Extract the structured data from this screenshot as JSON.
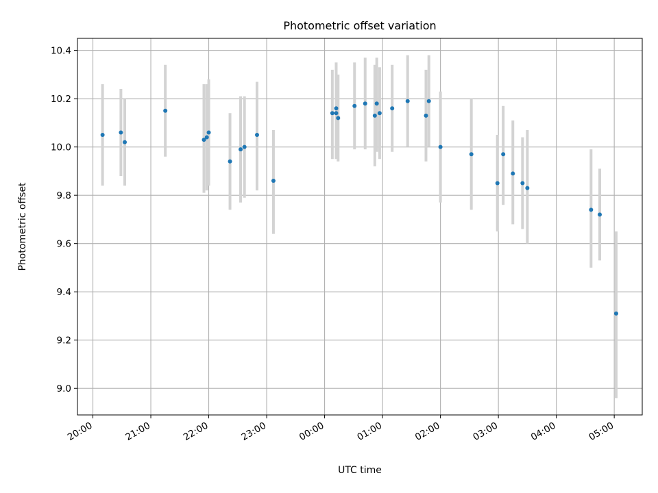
{
  "chart_data": {
    "type": "scatter",
    "title": "Photometric offset variation",
    "xlabel": "UTC time",
    "ylabel": "Photometric offset",
    "grid": true,
    "x_tick_labels": [
      "20:00",
      "21:00",
      "22:00",
      "23:00",
      "00:00",
      "01:00",
      "02:00",
      "03:00",
      "04:00",
      "05:00"
    ],
    "y_tick_labels": [
      "9.0",
      "9.2",
      "9.4",
      "9.6",
      "9.8",
      "10.0",
      "10.2",
      "10.4"
    ],
    "y_ticks": [
      9.0,
      9.2,
      9.4,
      9.6,
      9.8,
      10.0,
      10.2,
      10.4
    ],
    "xlim": [
      "19:44",
      "05:29"
    ],
    "ylim": [
      8.89,
      10.45
    ],
    "colors": {
      "marker": "#1f77b4",
      "errorbar": "#d3d3d3",
      "grid": "#b0b0b0"
    },
    "points": [
      {
        "t": "20:10",
        "y": 10.05,
        "lo": 9.84,
        "hi": 10.26
      },
      {
        "t": "20:29",
        "y": 10.06,
        "lo": 9.88,
        "hi": 10.24
      },
      {
        "t": "20:33",
        "y": 10.02,
        "lo": 9.84,
        "hi": 10.2
      },
      {
        "t": "21:15",
        "y": 10.15,
        "lo": 9.96,
        "hi": 10.34
      },
      {
        "t": "21:55",
        "y": 10.03,
        "lo": 9.81,
        "hi": 10.26
      },
      {
        "t": "21:58",
        "y": 10.04,
        "lo": 9.82,
        "hi": 10.26
      },
      {
        "t": "22:00",
        "y": 10.06,
        "lo": 9.84,
        "hi": 10.28
      },
      {
        "t": "22:22",
        "y": 9.94,
        "lo": 9.74,
        "hi": 10.14
      },
      {
        "t": "22:33",
        "y": 9.99,
        "lo": 9.77,
        "hi": 10.21
      },
      {
        "t": "22:37",
        "y": 10.0,
        "lo": 9.79,
        "hi": 10.21
      },
      {
        "t": "22:50",
        "y": 10.05,
        "lo": 9.82,
        "hi": 10.27
      },
      {
        "t": "23:07",
        "y": 9.86,
        "lo": 9.64,
        "hi": 10.07
      },
      {
        "t": "00:08",
        "y": 10.14,
        "lo": 9.95,
        "hi": 10.32
      },
      {
        "t": "00:12",
        "y": 10.16,
        "lo": 9.95,
        "hi": 10.35
      },
      {
        "t": "00:12",
        "y": 10.14,
        "lo": 9.97,
        "hi": 10.31
      },
      {
        "t": "00:14",
        "y": 10.12,
        "lo": 9.94,
        "hi": 10.3
      },
      {
        "t": "00:31",
        "y": 10.17,
        "lo": 9.99,
        "hi": 10.35
      },
      {
        "t": "00:42",
        "y": 10.18,
        "lo": 9.99,
        "hi": 10.37
      },
      {
        "t": "00:52",
        "y": 10.13,
        "lo": 9.92,
        "hi": 10.34
      },
      {
        "t": "00:54",
        "y": 10.18,
        "lo": 9.98,
        "hi": 10.37
      },
      {
        "t": "00:57",
        "y": 10.14,
        "lo": 9.95,
        "hi": 10.33
      },
      {
        "t": "01:10",
        "y": 10.16,
        "lo": 9.98,
        "hi": 10.34
      },
      {
        "t": "01:26",
        "y": 10.19,
        "lo": 10.0,
        "hi": 10.38
      },
      {
        "t": "01:45",
        "y": 10.13,
        "lo": 9.94,
        "hi": 10.32
      },
      {
        "t": "01:48",
        "y": 10.19,
        "lo": 10.0,
        "hi": 10.38
      },
      {
        "t": "02:00",
        "y": 10.0,
        "lo": 9.77,
        "hi": 10.23
      },
      {
        "t": "02:32",
        "y": 9.97,
        "lo": 9.74,
        "hi": 10.2
      },
      {
        "t": "02:59",
        "y": 9.85,
        "lo": 9.65,
        "hi": 10.05
      },
      {
        "t": "03:05",
        "y": 9.97,
        "lo": 9.76,
        "hi": 10.17
      },
      {
        "t": "03:15",
        "y": 9.89,
        "lo": 9.68,
        "hi": 10.11
      },
      {
        "t": "03:25",
        "y": 9.85,
        "lo": 9.66,
        "hi": 10.04
      },
      {
        "t": "03:30",
        "y": 9.83,
        "lo": 9.6,
        "hi": 10.07
      },
      {
        "t": "04:36",
        "y": 9.74,
        "lo": 9.5,
        "hi": 9.99
      },
      {
        "t": "04:45",
        "y": 9.72,
        "lo": 9.53,
        "hi": 9.91
      },
      {
        "t": "05:02",
        "y": 9.31,
        "lo": 8.96,
        "hi": 9.65
      }
    ]
  }
}
